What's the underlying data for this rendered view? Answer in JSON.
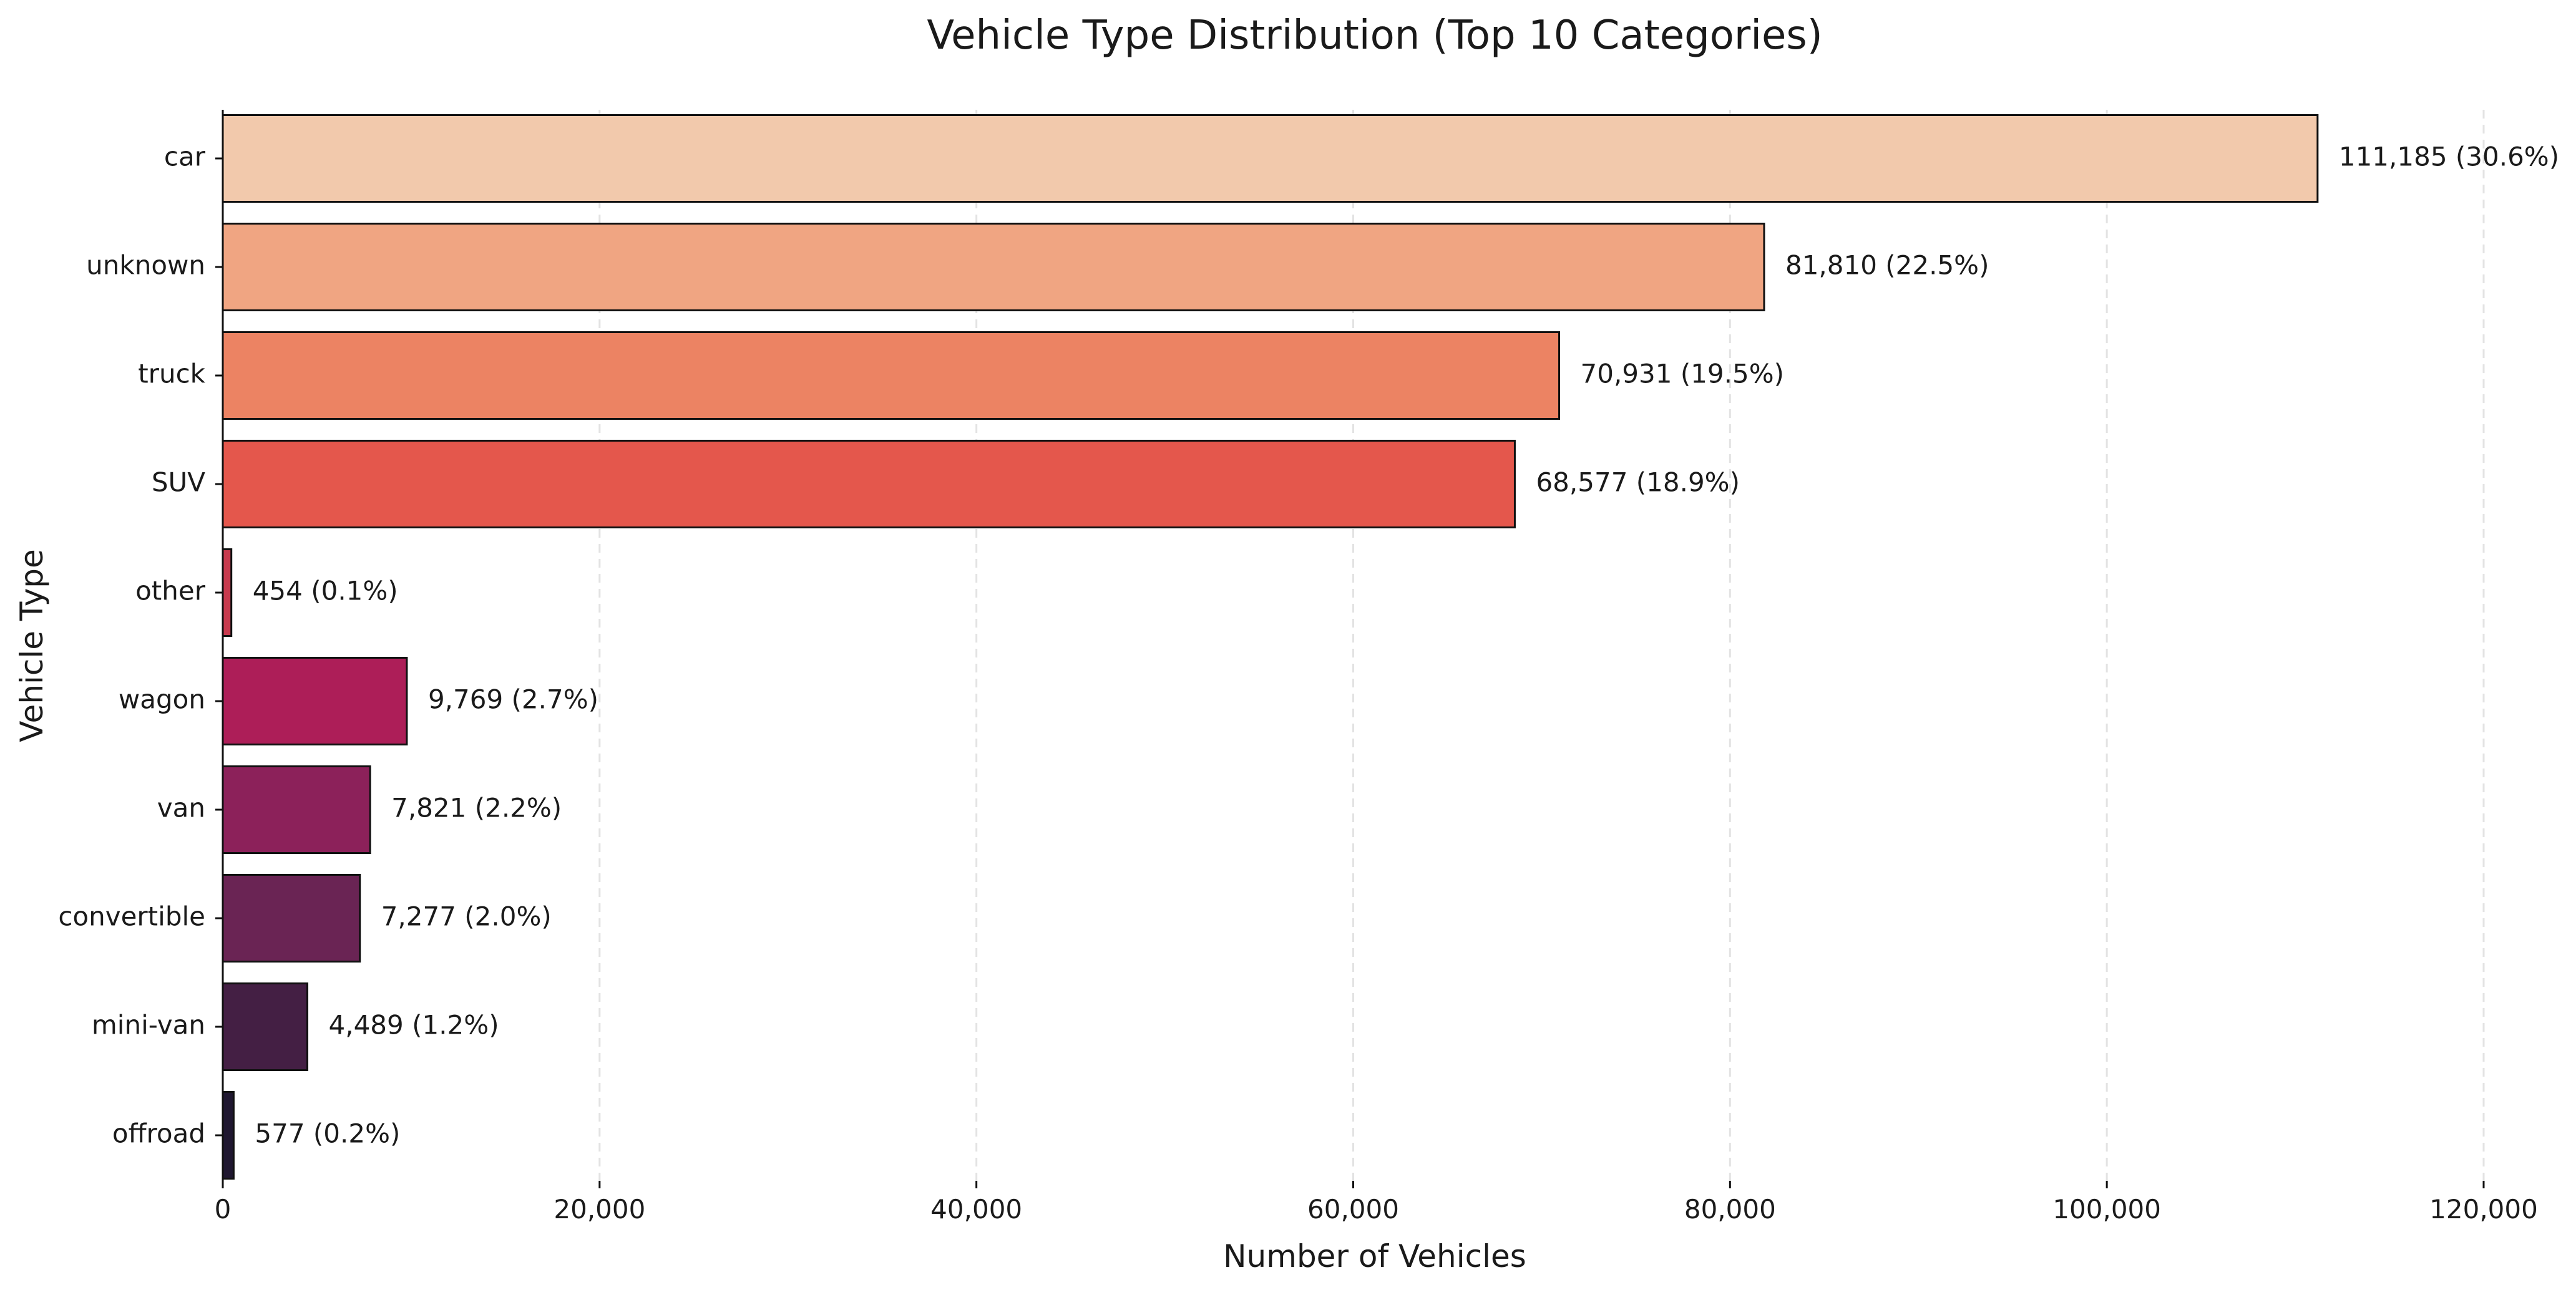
{
  "chart_data": {
    "type": "bar",
    "orientation": "horizontal",
    "title": "Vehicle Type Distribution (Top 10 Categories)",
    "xlabel": "Number of Vehicles",
    "ylabel": "Vehicle Type",
    "xlim": [
      0,
      120000
    ],
    "x_ticks": [
      0,
      20000,
      40000,
      60000,
      80000,
      100000,
      120000
    ],
    "x_tick_labels": [
      "0",
      "20,000",
      "40,000",
      "60,000",
      "80,000",
      "100,000",
      "120,000"
    ],
    "grid": "vertical dashed",
    "categories": [
      "car",
      "unknown",
      "truck",
      "SUV",
      "other",
      "wagon",
      "van",
      "convertible",
      "mini-van",
      "offroad"
    ],
    "values": [
      111185,
      81810,
      70931,
      68577,
      454,
      9769,
      7821,
      7277,
      4489,
      577
    ],
    "data_labels": [
      "111,185 (30.6%)",
      "81,810 (22.5%)",
      "70,931 (19.5%)",
      "68,577 (18.9%)",
      "454 (0.1%)",
      "9,769 (2.7%)",
      "7,821 (2.2%)",
      "7,277 (2.0%)",
      "4,489 (1.2%)",
      "577 (0.2%)"
    ],
    "colors": [
      "#f2c9ac",
      "#f0a582",
      "#ec8363",
      "#e4574c",
      "#c73a4e",
      "#ad1e58",
      "#8c215a",
      "#6a2454",
      "#441f44",
      "#1f1730"
    ]
  }
}
